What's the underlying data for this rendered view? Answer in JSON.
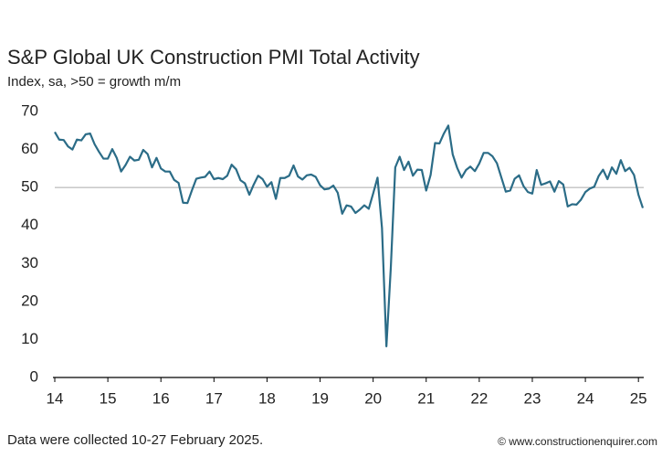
{
  "chart_data": {
    "type": "line",
    "title": "S&P Global UK Construction PMI Total Activity",
    "subtitle": "Index, sa, >50 = growth m/m",
    "footnote": "Data were collected 10-27 February 2025.",
    "watermark": "© www.constructionenquirer.com",
    "x": [
      14,
      14.083,
      14.167,
      14.25,
      14.333,
      14.417,
      14.5,
      14.583,
      14.667,
      14.75,
      14.833,
      14.917,
      15,
      15.083,
      15.167,
      15.25,
      15.333,
      15.417,
      15.5,
      15.583,
      15.667,
      15.75,
      15.833,
      15.917,
      16,
      16.083,
      16.167,
      16.25,
      16.333,
      16.417,
      16.5,
      16.583,
      16.667,
      16.75,
      16.833,
      16.917,
      17,
      17.083,
      17.167,
      17.25,
      17.333,
      17.417,
      17.5,
      17.583,
      17.667,
      17.75,
      17.833,
      17.917,
      18,
      18.083,
      18.167,
      18.25,
      18.333,
      18.417,
      18.5,
      18.583,
      18.667,
      18.75,
      18.833,
      18.917,
      19,
      19.083,
      19.167,
      19.25,
      19.333,
      19.417,
      19.5,
      19.583,
      19.667,
      19.75,
      19.833,
      19.917,
      20,
      20.083,
      20.167,
      20.25,
      20.333,
      20.417,
      20.5,
      20.583,
      20.667,
      20.75,
      20.833,
      20.917,
      21,
      21.083,
      21.167,
      21.25,
      21.333,
      21.417,
      21.5,
      21.583,
      21.667,
      21.75,
      21.833,
      21.917,
      22,
      22.083,
      22.167,
      22.25,
      22.333,
      22.417,
      22.5,
      22.583,
      22.667,
      22.75,
      22.833,
      22.917,
      23,
      23.083,
      23.167,
      23.25,
      23.333,
      23.417,
      23.5,
      23.583,
      23.667,
      23.75,
      23.833,
      23.917,
      24,
      24.083,
      24.167,
      24.25,
      24.333,
      24.417,
      24.5,
      24.583,
      24.667,
      24.75,
      24.833,
      24.917,
      25,
      25.083
    ],
    "series": [
      {
        "color": "#2b6c87",
        "values": [
          64.6,
          62.6,
          62.5,
          60.8,
          60.0,
          62.6,
          62.4,
          64.0,
          64.2,
          61.4,
          59.4,
          57.6,
          57.6,
          60.1,
          57.8,
          54.2,
          55.9,
          58.1,
          57.1,
          57.3,
          59.9,
          58.8,
          55.3,
          57.8,
          55.0,
          54.2,
          54.2,
          52.0,
          51.2,
          46.0,
          45.9,
          49.2,
          52.3,
          52.6,
          52.8,
          54.2,
          52.2,
          52.5,
          52.2,
          53.1,
          56.0,
          54.8,
          51.9,
          51.1,
          48.1,
          50.8,
          53.1,
          52.2,
          50.2,
          51.4,
          47.0,
          52.5,
          52.5,
          53.1,
          55.8,
          52.9,
          52.1,
          53.2,
          53.4,
          52.8,
          50.6,
          49.5,
          49.7,
          50.5,
          48.6,
          43.1,
          45.3,
          45.0,
          43.3,
          44.2,
          45.3,
          44.4,
          48.4,
          52.6,
          39.3,
          8.2,
          28.9,
          55.3,
          58.1,
          54.6,
          56.8,
          53.1,
          54.7,
          54.6,
          49.2,
          53.3,
          61.7,
          61.6,
          64.2,
          66.3,
          58.7,
          55.2,
          52.6,
          54.6,
          55.5,
          54.3,
          56.3,
          59.1,
          59.1,
          58.2,
          56.4,
          52.6,
          48.9,
          49.2,
          52.3,
          53.2,
          50.4,
          48.8,
          48.4,
          54.6,
          50.7,
          51.1,
          51.6,
          48.9,
          51.7,
          50.8,
          45.0,
          45.6,
          45.5,
          46.8,
          48.8,
          49.7,
          50.2,
          53.0,
          54.7,
          52.2,
          55.3,
          53.6,
          57.2,
          54.3,
          55.2,
          53.3,
          48.1,
          44.6
        ]
      }
    ],
    "xlim": [
      14,
      25.1
    ],
    "xticks": [
      14,
      15,
      16,
      17,
      18,
      19,
      20,
      21,
      22,
      23,
      24,
      25
    ],
    "ylim": [
      0,
      70
    ],
    "yticks": [
      0,
      10,
      20,
      30,
      40,
      50,
      60,
      70
    ],
    "reference_line": 50
  }
}
